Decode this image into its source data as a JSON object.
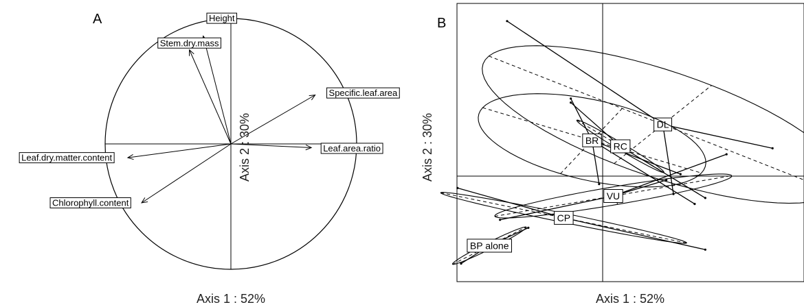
{
  "chart_data": [
    {
      "type": "correlation-circle",
      "panel": "A",
      "xlabel": "Axis 1 :  52%",
      "ylabel": "Axis 2 :  30%",
      "xlim": [
        -1,
        1
      ],
      "ylim": [
        -1,
        1
      ],
      "variables": [
        {
          "name": "Height",
          "x": -0.22,
          "y": 0.86
        },
        {
          "name": "Stem.dry.mass",
          "x": -0.33,
          "y": 0.75
        },
        {
          "name": "Specific.leaf.area",
          "x": 0.67,
          "y": 0.39
        },
        {
          "name": "Leaf.area.ratio",
          "x": 0.64,
          "y": -0.03
        },
        {
          "name": "Leaf.dry.matter.content",
          "x": -0.82,
          "y": -0.11
        },
        {
          "name": "Chlorophyll.content",
          "x": -0.71,
          "y": -0.47
        }
      ]
    },
    {
      "type": "scatter",
      "panel": "B",
      "xlabel": "Axis 1 :  52%",
      "ylabel": "Axis 2 :  30%",
      "xlim": [
        -2.7,
        3.0
      ],
      "ylim": [
        -2.7,
        4.4
      ],
      "groups": [
        {
          "name": "DL",
          "cx": 0.85,
          "cy": 1.3,
          "rx": 3.0,
          "ry": 1.2,
          "angle": -35,
          "points": [
            [
              -1.35,
              3.9
            ],
            [
              2.4,
              0.7
            ],
            [
              1.0,
              -0.45
            ]
          ]
        },
        {
          "name": "BR",
          "cx": -0.15,
          "cy": 0.9,
          "rx": 1.75,
          "ry": 0.95,
          "angle": -28,
          "points": [
            [
              -0.45,
              1.95
            ],
            [
              1.1,
              0.05
            ],
            [
              1.3,
              -0.7
            ],
            [
              -0.05,
              -0.2
            ]
          ]
        },
        {
          "name": "RC",
          "cx": 0.25,
          "cy": 0.75,
          "rx": 0.9,
          "ry": 0.07,
          "angle": -47,
          "points": [
            [
              -0.45,
              1.85
            ],
            [
              1.45,
              -0.55
            ]
          ]
        },
        {
          "name": "VU",
          "cx": 0.15,
          "cy": -0.5,
          "rx": 1.75,
          "ry": 0.22,
          "angle": 17,
          "points": [
            [
              -1.45,
              -1.1
            ],
            [
              1.75,
              0.55
            ],
            [
              0.9,
              -0.1
            ]
          ]
        },
        {
          "name": "CP",
          "cx": -0.55,
          "cy": -1.05,
          "rx": 1.85,
          "ry": 0.11,
          "angle": -20,
          "points": [
            [
              -2.05,
              -0.3
            ],
            [
              1.45,
              -1.85
            ]
          ]
        },
        {
          "name": "BP alone",
          "cx": -1.6,
          "cy": -1.75,
          "rx": 0.7,
          "ry": 0.07,
          "angle": 42,
          "points": [
            [
              -2.0,
              -2.2
            ],
            [
              -1.05,
              -1.3
            ]
          ]
        }
      ]
    }
  ]
}
